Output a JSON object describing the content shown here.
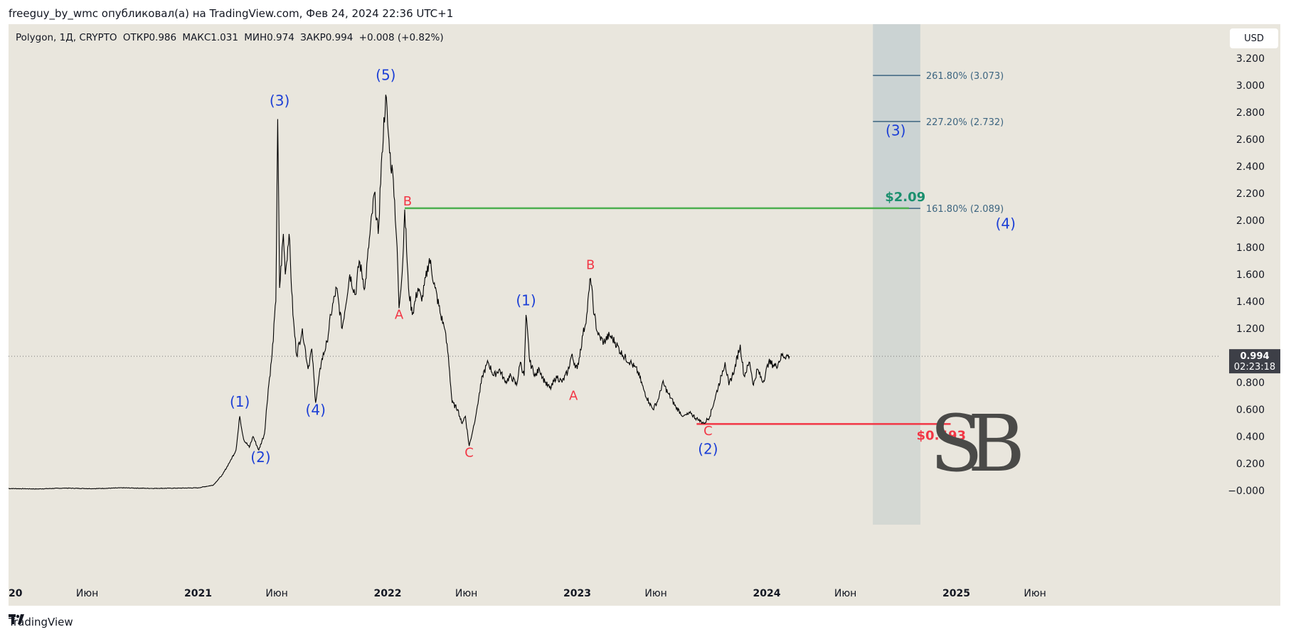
{
  "header": {
    "published_text": "freeguy_by_wmc опубликовал(а) на TradingView.com, Фев 24, 2024 22:36 UTC+1"
  },
  "legend": {
    "symbol": "Polygon, 1Д, CRYPTO",
    "open": "ОТКР0.986",
    "high": "МАКС1.031",
    "low": "МИН0.974",
    "close": "ЗАКР0.994",
    "change": "+0.008 (+0.82%)"
  },
  "currency_button": "USD",
  "footer": {
    "brand": "TradingView"
  },
  "colors": {
    "background": "#e9e6dd",
    "price": "#000000",
    "green_line": "#4caf50",
    "red_line": "#f23645",
    "wave_blue": "#1c3fd6",
    "corr_red": "#f23645",
    "fib_box": "#c6cfd1",
    "fib_text": "#3d6580"
  },
  "chart_data": {
    "type": "line",
    "title": "Polygon, 1Д, CRYPTO",
    "xlabel": "",
    "ylabel": "",
    "x_ticks": [
      {
        "label": "20",
        "t": 2020.0
      },
      {
        "label": "Июн",
        "t": 2020.415
      },
      {
        "label": "2021",
        "t": 2021.0
      },
      {
        "label": "Июн",
        "t": 2021.415
      },
      {
        "label": "2022",
        "t": 2022.0
      },
      {
        "label": "Июн",
        "t": 2022.415
      },
      {
        "label": "2023",
        "t": 2023.0
      },
      {
        "label": "Июн",
        "t": 2023.415
      },
      {
        "label": "2024",
        "t": 2024.0
      },
      {
        "label": "Июн",
        "t": 2024.415
      },
      {
        "label": "2025",
        "t": 2025.0
      },
      {
        "label": "Июн",
        "t": 2025.415
      }
    ],
    "y_ticks": [
      "3.200",
      "3.000",
      "2.800",
      "2.600",
      "2.400",
      "2.200",
      "2.000",
      "1.800",
      "1.600",
      "1.400",
      "1.200",
      "1.000",
      "0.800",
      "0.600",
      "0.400",
      "0.200",
      "−0.000"
    ],
    "y_tick_values": [
      3.2,
      3.0,
      2.8,
      2.6,
      2.4,
      2.2,
      2.0,
      1.8,
      1.6,
      1.4,
      1.2,
      1.0,
      0.8,
      0.6,
      0.4,
      0.2,
      0.0
    ],
    "ylim": [
      -0.1,
      3.45
    ],
    "xlim": [
      2020.0,
      2025.65
    ],
    "series": [
      {
        "values": [
          [
            2020.0,
            0.015
          ],
          [
            2020.15,
            0.012
          ],
          [
            2020.3,
            0.018
          ],
          [
            2020.45,
            0.014
          ],
          [
            2020.6,
            0.02
          ],
          [
            2020.75,
            0.016
          ],
          [
            2020.9,
            0.018
          ],
          [
            2021.0,
            0.02
          ],
          [
            2021.08,
            0.04
          ],
          [
            2021.13,
            0.12
          ],
          [
            2021.17,
            0.22
          ],
          [
            2021.2,
            0.3
          ],
          [
            2021.22,
            0.55
          ],
          [
            2021.24,
            0.38
          ],
          [
            2021.27,
            0.32
          ],
          [
            2021.29,
            0.4
          ],
          [
            2021.32,
            0.3
          ],
          [
            2021.35,
            0.42
          ],
          [
            2021.37,
            0.75
          ],
          [
            2021.39,
            1.0
          ],
          [
            2021.41,
            1.4
          ],
          [
            2021.42,
            2.75
          ],
          [
            2021.43,
            1.5
          ],
          [
            2021.45,
            1.9
          ],
          [
            2021.46,
            1.6
          ],
          [
            2021.48,
            1.9
          ],
          [
            2021.5,
            1.3
          ],
          [
            2021.52,
            1.0
          ],
          [
            2021.55,
            1.2
          ],
          [
            2021.58,
            0.9
          ],
          [
            2021.6,
            1.05
          ],
          [
            2021.62,
            0.65
          ],
          [
            2021.65,
            0.95
          ],
          [
            2021.68,
            1.1
          ],
          [
            2021.7,
            1.3
          ],
          [
            2021.73,
            1.5
          ],
          [
            2021.76,
            1.2
          ],
          [
            2021.8,
            1.6
          ],
          [
            2021.83,
            1.45
          ],
          [
            2021.85,
            1.7
          ],
          [
            2021.88,
            1.5
          ],
          [
            2021.9,
            1.8
          ],
          [
            2021.93,
            2.2
          ],
          [
            2021.95,
            1.9
          ],
          [
            2021.97,
            2.5
          ],
          [
            2021.99,
            2.93
          ],
          [
            2022.01,
            2.5
          ],
          [
            2022.03,
            2.3
          ],
          [
            2022.05,
            1.8
          ],
          [
            2022.06,
            1.35
          ],
          [
            2022.08,
            1.7
          ],
          [
            2022.09,
            2.08
          ],
          [
            2022.11,
            1.5
          ],
          [
            2022.13,
            1.3
          ],
          [
            2022.16,
            1.5
          ],
          [
            2022.18,
            1.4
          ],
          [
            2022.22,
            1.72
          ],
          [
            2022.25,
            1.5
          ],
          [
            2022.28,
            1.3
          ],
          [
            2022.3,
            1.2
          ],
          [
            2022.32,
            1.0
          ],
          [
            2022.34,
            0.65
          ],
          [
            2022.37,
            0.6
          ],
          [
            2022.39,
            0.5
          ],
          [
            2022.41,
            0.55
          ],
          [
            2022.43,
            0.33
          ],
          [
            2022.45,
            0.45
          ],
          [
            2022.47,
            0.6
          ],
          [
            2022.5,
            0.85
          ],
          [
            2022.53,
            0.95
          ],
          [
            2022.56,
            0.85
          ],
          [
            2022.59,
            0.9
          ],
          [
            2022.62,
            0.8
          ],
          [
            2022.65,
            0.85
          ],
          [
            2022.68,
            0.78
          ],
          [
            2022.7,
            0.95
          ],
          [
            2022.72,
            0.85
          ],
          [
            2022.73,
            1.3
          ],
          [
            2022.75,
            0.95
          ],
          [
            2022.78,
            0.85
          ],
          [
            2022.8,
            0.9
          ],
          [
            2022.83,
            0.8
          ],
          [
            2022.86,
            0.75
          ],
          [
            2022.89,
            0.85
          ],
          [
            2022.92,
            0.8
          ],
          [
            2022.95,
            0.88
          ],
          [
            2022.97,
            1.0
          ],
          [
            2023.0,
            0.9
          ],
          [
            2023.03,
            1.15
          ],
          [
            2023.05,
            1.3
          ],
          [
            2023.07,
            1.57
          ],
          [
            2023.09,
            1.3
          ],
          [
            2023.11,
            1.15
          ],
          [
            2023.14,
            1.1
          ],
          [
            2023.17,
            1.15
          ],
          [
            2023.2,
            1.1
          ],
          [
            2023.24,
            1.0
          ],
          [
            2023.28,
            0.95
          ],
          [
            2023.32,
            0.88
          ],
          [
            2023.35,
            0.75
          ],
          [
            2023.38,
            0.65
          ],
          [
            2023.4,
            0.6
          ],
          [
            2023.43,
            0.68
          ],
          [
            2023.45,
            0.8
          ],
          [
            2023.48,
            0.72
          ],
          [
            2023.52,
            0.62
          ],
          [
            2023.56,
            0.55
          ],
          [
            2023.6,
            0.57
          ],
          [
            2023.64,
            0.52
          ],
          [
            2023.67,
            0.5
          ],
          [
            2023.7,
            0.55
          ],
          [
            2023.73,
            0.7
          ],
          [
            2023.76,
            0.85
          ],
          [
            2023.78,
            0.95
          ],
          [
            2023.8,
            0.78
          ],
          [
            2023.83,
            0.9
          ],
          [
            2023.86,
            1.08
          ],
          [
            2023.88,
            0.85
          ],
          [
            2023.91,
            0.95
          ],
          [
            2023.93,
            0.78
          ],
          [
            2023.95,
            0.9
          ],
          [
            2023.98,
            0.8
          ],
          [
            2024.01,
            0.95
          ],
          [
            2024.05,
            0.92
          ],
          [
            2024.08,
            1.0
          ],
          [
            2024.12,
            0.994
          ]
        ]
      }
    ],
    "annotations": {
      "wave_labels": [
        {
          "text": "(1)",
          "t": 2021.22,
          "y": 0.62,
          "color": "blue"
        },
        {
          "text": "(2)",
          "t": 2021.33,
          "y": 0.21,
          "color": "blue"
        },
        {
          "text": "(3)",
          "t": 2021.43,
          "y": 2.85,
          "color": "blue"
        },
        {
          "text": "(4)",
          "t": 2021.62,
          "y": 0.56,
          "color": "blue"
        },
        {
          "text": "(5)",
          "t": 2021.99,
          "y": 3.04,
          "color": "blue"
        },
        {
          "text": "B",
          "t": 2022.105,
          "y": 2.11,
          "color": "red"
        },
        {
          "text": "A",
          "t": 2022.06,
          "y": 1.27,
          "color": "red"
        },
        {
          "text": "C",
          "t": 2022.43,
          "y": 0.25,
          "color": "red"
        },
        {
          "text": "(1)",
          "t": 2022.73,
          "y": 1.37,
          "color": "blue"
        },
        {
          "text": "A",
          "t": 2022.98,
          "y": 0.67,
          "color": "red"
        },
        {
          "text": "B",
          "t": 2023.07,
          "y": 1.64,
          "color": "red"
        },
        {
          "text": "C",
          "t": 2023.69,
          "y": 0.41,
          "color": "red"
        },
        {
          "text": "(2)",
          "t": 2023.69,
          "y": 0.27,
          "color": "blue"
        },
        {
          "text": "(3)",
          "t": 2024.68,
          "y": 2.63,
          "color": "blue"
        },
        {
          "text": "(4)",
          "t": 2025.26,
          "y": 1.94,
          "color": "blue"
        }
      ],
      "levels": [
        {
          "label": "$2.09",
          "value": 2.09,
          "color": "green",
          "from": 2022.09,
          "to": 2024.75
        },
        {
          "label": "$0.493",
          "value": 0.493,
          "color": "red",
          "from": 2023.63,
          "to": 2024.97
        }
      ],
      "fib_levels": [
        {
          "label": "261.80% (3.073)",
          "value": 3.073
        },
        {
          "label": "227.20% (2.732)",
          "value": 2.732
        },
        {
          "label": "161.80% (2.089)",
          "value": 2.089
        }
      ],
      "fib_zone_t": [
        2024.56,
        2024.81
      ],
      "last_price": {
        "value": "0.994",
        "countdown": "02:23:18"
      },
      "watermark": "SB"
    }
  }
}
